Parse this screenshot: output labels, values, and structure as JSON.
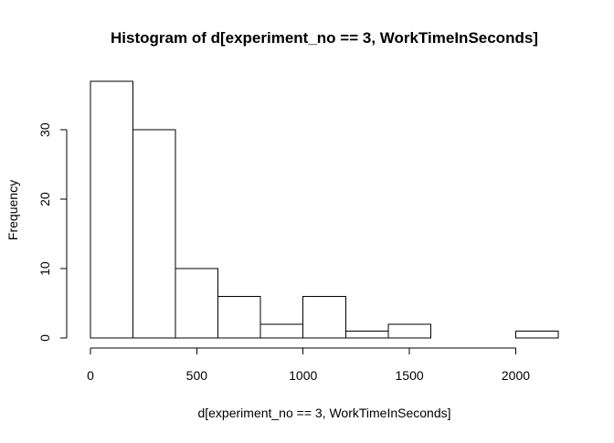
{
  "chart_data": {
    "type": "bar",
    "title": "Histogram of d[experiment_no == 3, WorkTimeInSeconds]",
    "xlabel": "d[experiment_no == 3, WorkTimeInSeconds]",
    "ylabel": "Frequency",
    "bin_edges": [
      0,
      200,
      400,
      600,
      800,
      1000,
      1200,
      1400,
      1600,
      1800,
      2000,
      2200
    ],
    "values": [
      37,
      30,
      10,
      6,
      2,
      6,
      1,
      2,
      0,
      0,
      1
    ],
    "xlim": [
      0,
      2200
    ],
    "ylim": [
      0,
      37
    ],
    "x_ticks": [
      0,
      500,
      1000,
      1500,
      2000
    ],
    "y_ticks": [
      0,
      10,
      20,
      30
    ],
    "grid": false,
    "bar_fill": "#ffffff",
    "bar_stroke": "#000000"
  }
}
